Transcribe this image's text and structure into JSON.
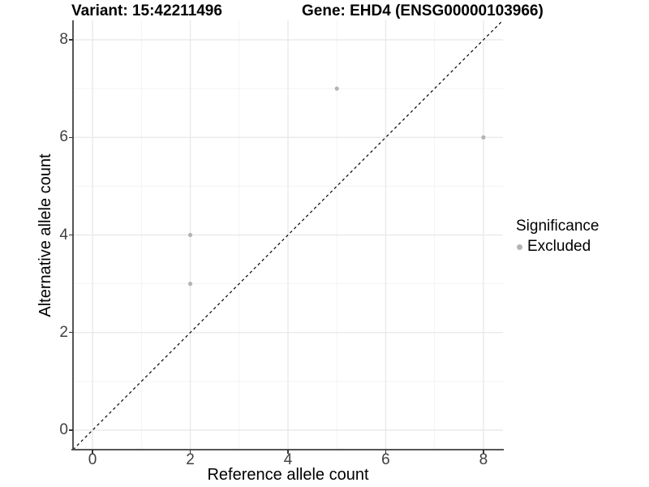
{
  "header": {
    "variant_title": "Variant: 15:42211496",
    "gene_title": "Gene: EHD4 (ENSG00000103966)"
  },
  "chart_data": {
    "type": "scatter",
    "xlabel": "Reference allele count",
    "ylabel": "Alternative allele count",
    "x_domain": [
      -0.4,
      8.4
    ],
    "y_domain": [
      -0.4,
      8.4
    ],
    "x_ticks": [
      0,
      2,
      4,
      6,
      8
    ],
    "y_ticks": [
      0,
      2,
      4,
      6,
      8
    ],
    "x_minor_ticks": [
      1,
      3,
      5,
      7
    ],
    "y_minor_ticks": [
      1,
      3,
      5,
      7
    ],
    "grid": {
      "major_color": "#e8e8e8",
      "minor_color": "#f3f3f3",
      "background": "#ffffff"
    },
    "axis": {
      "line_color": "#555555",
      "tick_color": "#333333",
      "text_color": "#404040"
    },
    "identity_line": {
      "style": "dashed",
      "color": "#000000",
      "slope": 1,
      "intercept": 0
    },
    "series": [
      {
        "name": "Excluded",
        "color": "#b4b4b4",
        "points": [
          [
            2,
            3
          ],
          [
            2,
            4
          ],
          [
            5,
            7
          ],
          [
            8,
            6
          ]
        ]
      }
    ]
  },
  "legend": {
    "title": "Significance",
    "items": [
      {
        "label": "Excluded",
        "color": "#b4b4b4"
      }
    ]
  }
}
